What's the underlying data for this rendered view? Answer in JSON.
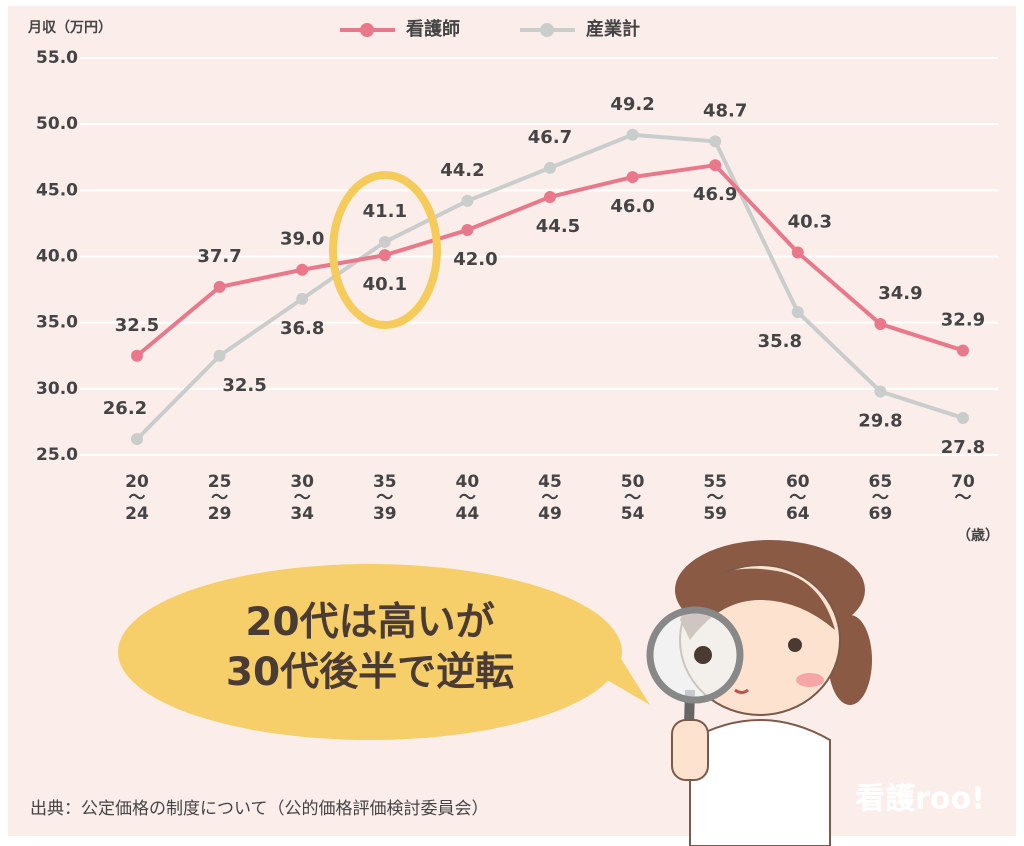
{
  "chart_data": {
    "type": "line",
    "y_axis_label": "月収（万円）",
    "x_axis_label": "（歳）",
    "categories": [
      "20\n〜\n24",
      "25\n〜\n29",
      "30\n〜\n34",
      "35\n〜\n39",
      "40\n〜\n44",
      "45\n〜\n49",
      "50\n〜\n54",
      "55\n〜\n59",
      "60\n〜\n64",
      "65\n〜\n69",
      "70\n〜"
    ],
    "series": [
      {
        "name": "看護師",
        "color": "#e8788a",
        "values": [
          32.5,
          37.7,
          39.0,
          40.1,
          42.0,
          44.5,
          46.0,
          46.9,
          40.3,
          34.9,
          32.9
        ],
        "value_labels": [
          "32.5",
          "37.7",
          "39.0",
          "40.1",
          "42.0",
          "44.5",
          "46.0",
          "46.9",
          "40.3",
          "34.9",
          "32.9"
        ]
      },
      {
        "name": "産業計",
        "color": "#c9cdcc",
        "values": [
          26.2,
          32.5,
          36.8,
          41.1,
          44.2,
          46.7,
          49.2,
          48.7,
          35.8,
          29.8,
          27.8
        ],
        "value_labels": [
          "26.2",
          "32.5",
          "36.8",
          "41.1",
          "44.2",
          "46.7",
          "49.2",
          "48.7",
          "35.8",
          "29.8",
          "27.8"
        ]
      }
    ],
    "ylim": [
      25,
      55
    ],
    "yticks": [
      {
        "value": 25,
        "label": "25.0"
      },
      {
        "value": 30,
        "label": "30.0"
      },
      {
        "value": 35,
        "label": "35.0"
      },
      {
        "value": 40,
        "label": "40.0"
      },
      {
        "value": 45,
        "label": "45.0"
      },
      {
        "value": 50,
        "label": "50.0"
      },
      {
        "value": 55,
        "label": "55.0"
      }
    ],
    "grid": true,
    "legend": "top",
    "annotation": "20代は高いが\n30代後半で逆転",
    "source": "出典：公定価格の制度について（公的価格評価検討委員会）",
    "logo": "看護roo!"
  }
}
